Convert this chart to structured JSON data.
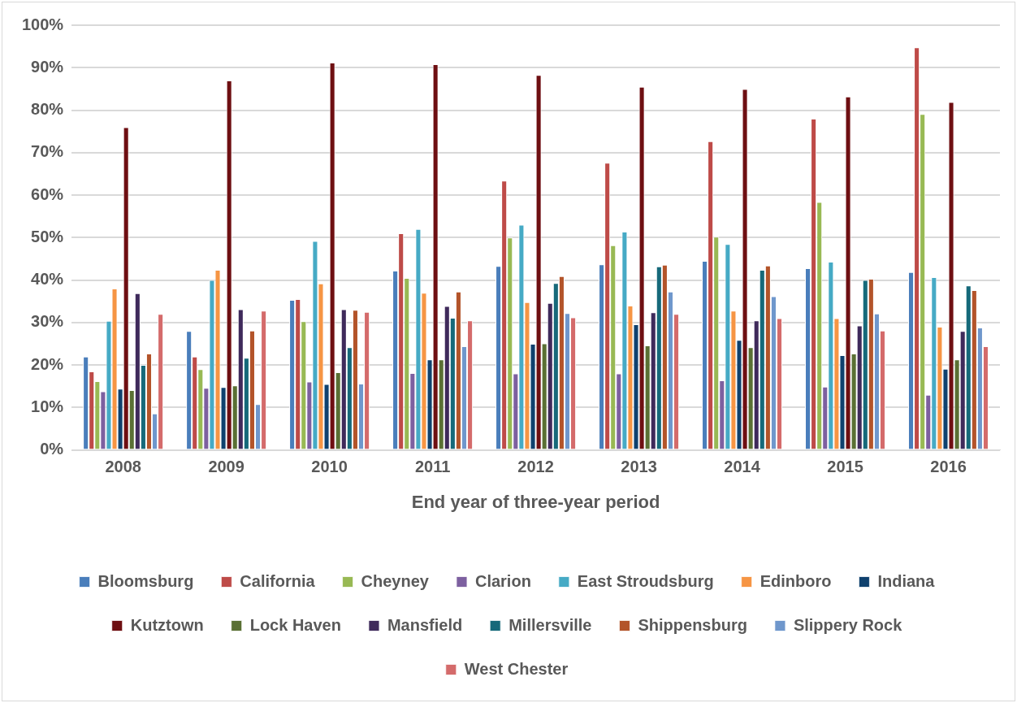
{
  "chart_data": {
    "type": "bar",
    "xlabel": "End year of three-year period",
    "categories": [
      "2008",
      "2009",
      "2010",
      "2011",
      "2012",
      "2013",
      "2014",
      "2015",
      "2016"
    ],
    "ylim": [
      0,
      100
    ],
    "yticks": [
      {
        "value": 0,
        "label": "0%"
      },
      {
        "value": 10,
        "label": "10%"
      },
      {
        "value": 20,
        "label": "20%"
      },
      {
        "value": 30,
        "label": "30%"
      },
      {
        "value": 40,
        "label": "40%"
      },
      {
        "value": 50,
        "label": "50%"
      },
      {
        "value": 60,
        "label": "60%"
      },
      {
        "value": 70,
        "label": "70%"
      },
      {
        "value": 80,
        "label": "80%"
      },
      {
        "value": 90,
        "label": "90%"
      },
      {
        "value": 100,
        "label": "100%"
      }
    ],
    "grid": "y",
    "legend": "bottom",
    "series": [
      {
        "name": "Bloomsburg",
        "color": "#4a7ebb",
        "values": [
          22,
          28,
          35.3,
          42.2,
          43.3,
          43.7,
          44.5,
          42.8,
          41.9
        ]
      },
      {
        "name": "California",
        "color": "#be4b48",
        "values": [
          18.5,
          22,
          35.5,
          51,
          63.4,
          67.6,
          72.7,
          78,
          94.8
        ]
      },
      {
        "name": "Cheyney",
        "color": "#98b954",
        "values": [
          16.2,
          19,
          30.3,
          40.5,
          50,
          48.2,
          50.2,
          58.4,
          79.1
        ]
      },
      {
        "name": "Clarion",
        "color": "#7d60a0",
        "values": [
          13.8,
          14.6,
          16.1,
          18.1,
          18,
          18,
          16.4,
          14.9,
          13
        ]
      },
      {
        "name": "East Stroudsburg",
        "color": "#46aac5",
        "values": [
          30.4,
          40,
          49.2,
          52,
          53,
          51.4,
          48.5,
          44.3,
          40.7
        ]
      },
      {
        "name": "Edinboro",
        "color": "#f69544",
        "values": [
          38,
          42.4,
          39.2,
          37,
          34.8,
          34,
          32.8,
          31,
          29
        ]
      },
      {
        "name": "Indiana",
        "color": "#0f416e",
        "values": [
          14.4,
          14.8,
          15.5,
          21.3,
          25,
          29.6,
          25.9,
          22.3,
          19.1
        ]
      },
      {
        "name": "Kutztown",
        "color": "#6e0f12",
        "values": [
          76,
          87,
          91.2,
          90.8,
          88.3,
          85.5,
          85,
          83.2,
          81.9
        ]
      },
      {
        "name": "Lock Haven",
        "color": "#5a7034",
        "values": [
          14.1,
          15.2,
          18.3,
          21.3,
          25.1,
          24.6,
          24.2,
          22.7,
          21.3
        ]
      },
      {
        "name": "Mansfield",
        "color": "#3f2a5b",
        "values": [
          36.9,
          33.1,
          33.1,
          33.9,
          34.6,
          32.4,
          30.5,
          29.3,
          28
        ]
      },
      {
        "name": "Millersville",
        "color": "#16697a",
        "values": [
          20,
          21.7,
          24.2,
          31.1,
          39.3,
          43.2,
          42.4,
          40,
          38.7
        ]
      },
      {
        "name": "Shippensburg",
        "color": "#b3542a",
        "values": [
          22.7,
          28.1,
          33,
          37.3,
          40.9,
          43.6,
          43.4,
          40.3,
          37.6
        ]
      },
      {
        "name": "Slippery Rock",
        "color": "#6f97cc",
        "values": [
          8.6,
          10.8,
          15.6,
          24.4,
          32.2,
          37.3,
          36.2,
          32.1,
          28.8
        ]
      },
      {
        "name": "West Chester",
        "color": "#d46b6b",
        "values": [
          32,
          32.8,
          32.5,
          30.5,
          31.2,
          32,
          31,
          28.1,
          24.4
        ]
      }
    ]
  }
}
